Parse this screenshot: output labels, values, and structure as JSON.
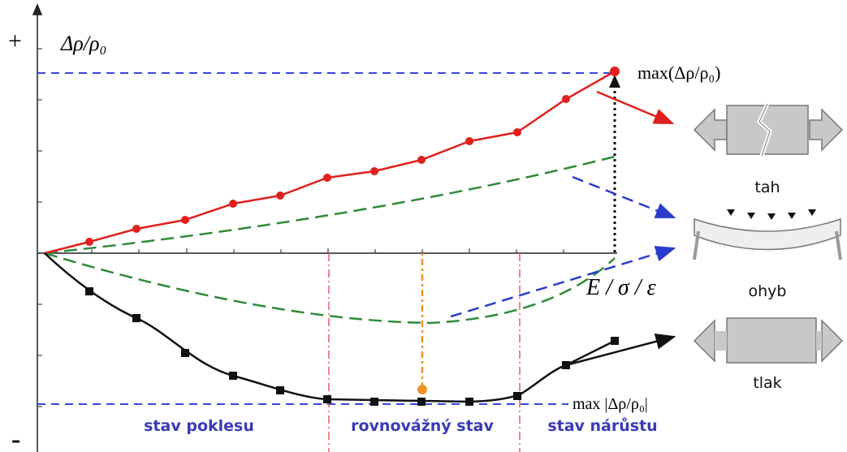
{
  "axes": {
    "plus": "+",
    "minus": "-",
    "y_label": "Δρ/ρ₀",
    "x_label": "E / σ / ε"
  },
  "annotations": {
    "max_top": "max(Δρ/ρ₀)",
    "max_bottom": "max |Δρ/ρ₀|"
  },
  "regions": [
    "stav poklesu",
    "rovnovážný stav",
    "stav nárůstu"
  ],
  "loads": [
    "tah",
    "ohyb",
    "tlak"
  ]
}
